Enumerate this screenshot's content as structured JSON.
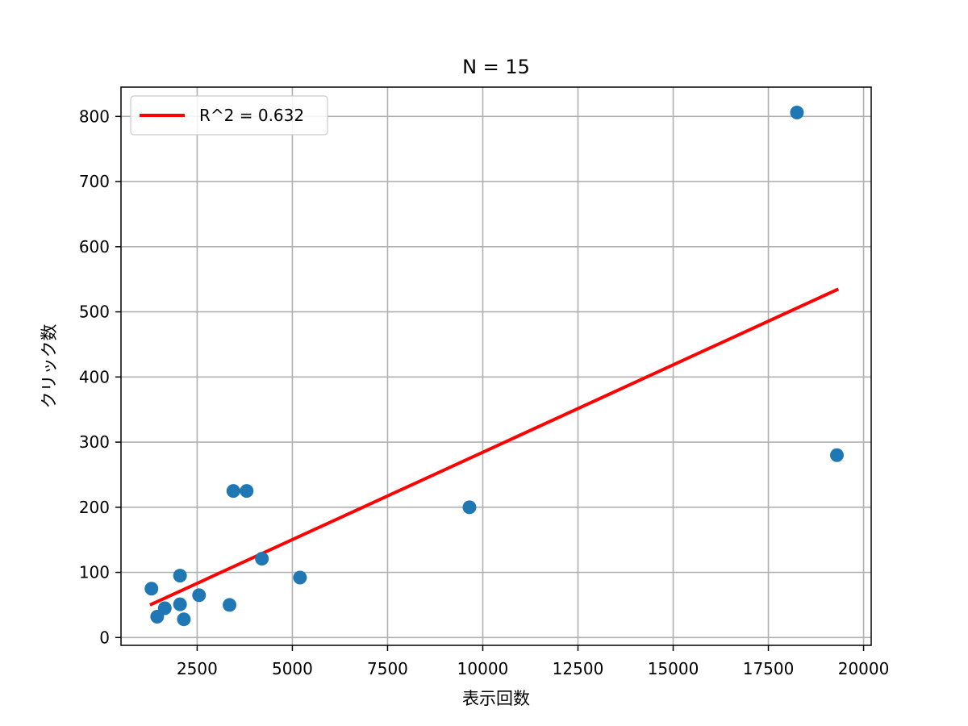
{
  "chart_data": {
    "type": "scatter",
    "title": "N = 15",
    "xlabel": "表示回数",
    "ylabel": "クリック数",
    "xlim": [
      500,
      20200
    ],
    "ylim": [
      -12,
      845
    ],
    "xticks": [
      2500,
      5000,
      7500,
      10000,
      12500,
      15000,
      17500,
      20000
    ],
    "yticks": [
      0,
      100,
      200,
      300,
      400,
      500,
      600,
      700,
      800
    ],
    "grid": true,
    "legend_position": "top-left",
    "colors": {
      "points": "#1f77b4",
      "fit_line": "#ff0000",
      "grid": "#b0b0b0"
    },
    "series": [
      {
        "kind": "scatter",
        "points": [
          {
            "x": 1300,
            "y": 75
          },
          {
            "x": 1450,
            "y": 32
          },
          {
            "x": 1650,
            "y": 45
          },
          {
            "x": 2050,
            "y": 95
          },
          {
            "x": 2050,
            "y": 51
          },
          {
            "x": 2150,
            "y": 28
          },
          {
            "x": 2550,
            "y": 65
          },
          {
            "x": 3350,
            "y": 50
          },
          {
            "x": 3450,
            "y": 225
          },
          {
            "x": 3800,
            "y": 225
          },
          {
            "x": 4200,
            "y": 121
          },
          {
            "x": 5200,
            "y": 92
          },
          {
            "x": 9650,
            "y": 200
          },
          {
            "x": 18250,
            "y": 806
          },
          {
            "x": 19300,
            "y": 280
          }
        ]
      },
      {
        "kind": "line",
        "name": "R^2 = 0.632",
        "points": [
          {
            "x": 1300,
            "y": 51
          },
          {
            "x": 19300,
            "y": 534
          }
        ]
      }
    ]
  }
}
